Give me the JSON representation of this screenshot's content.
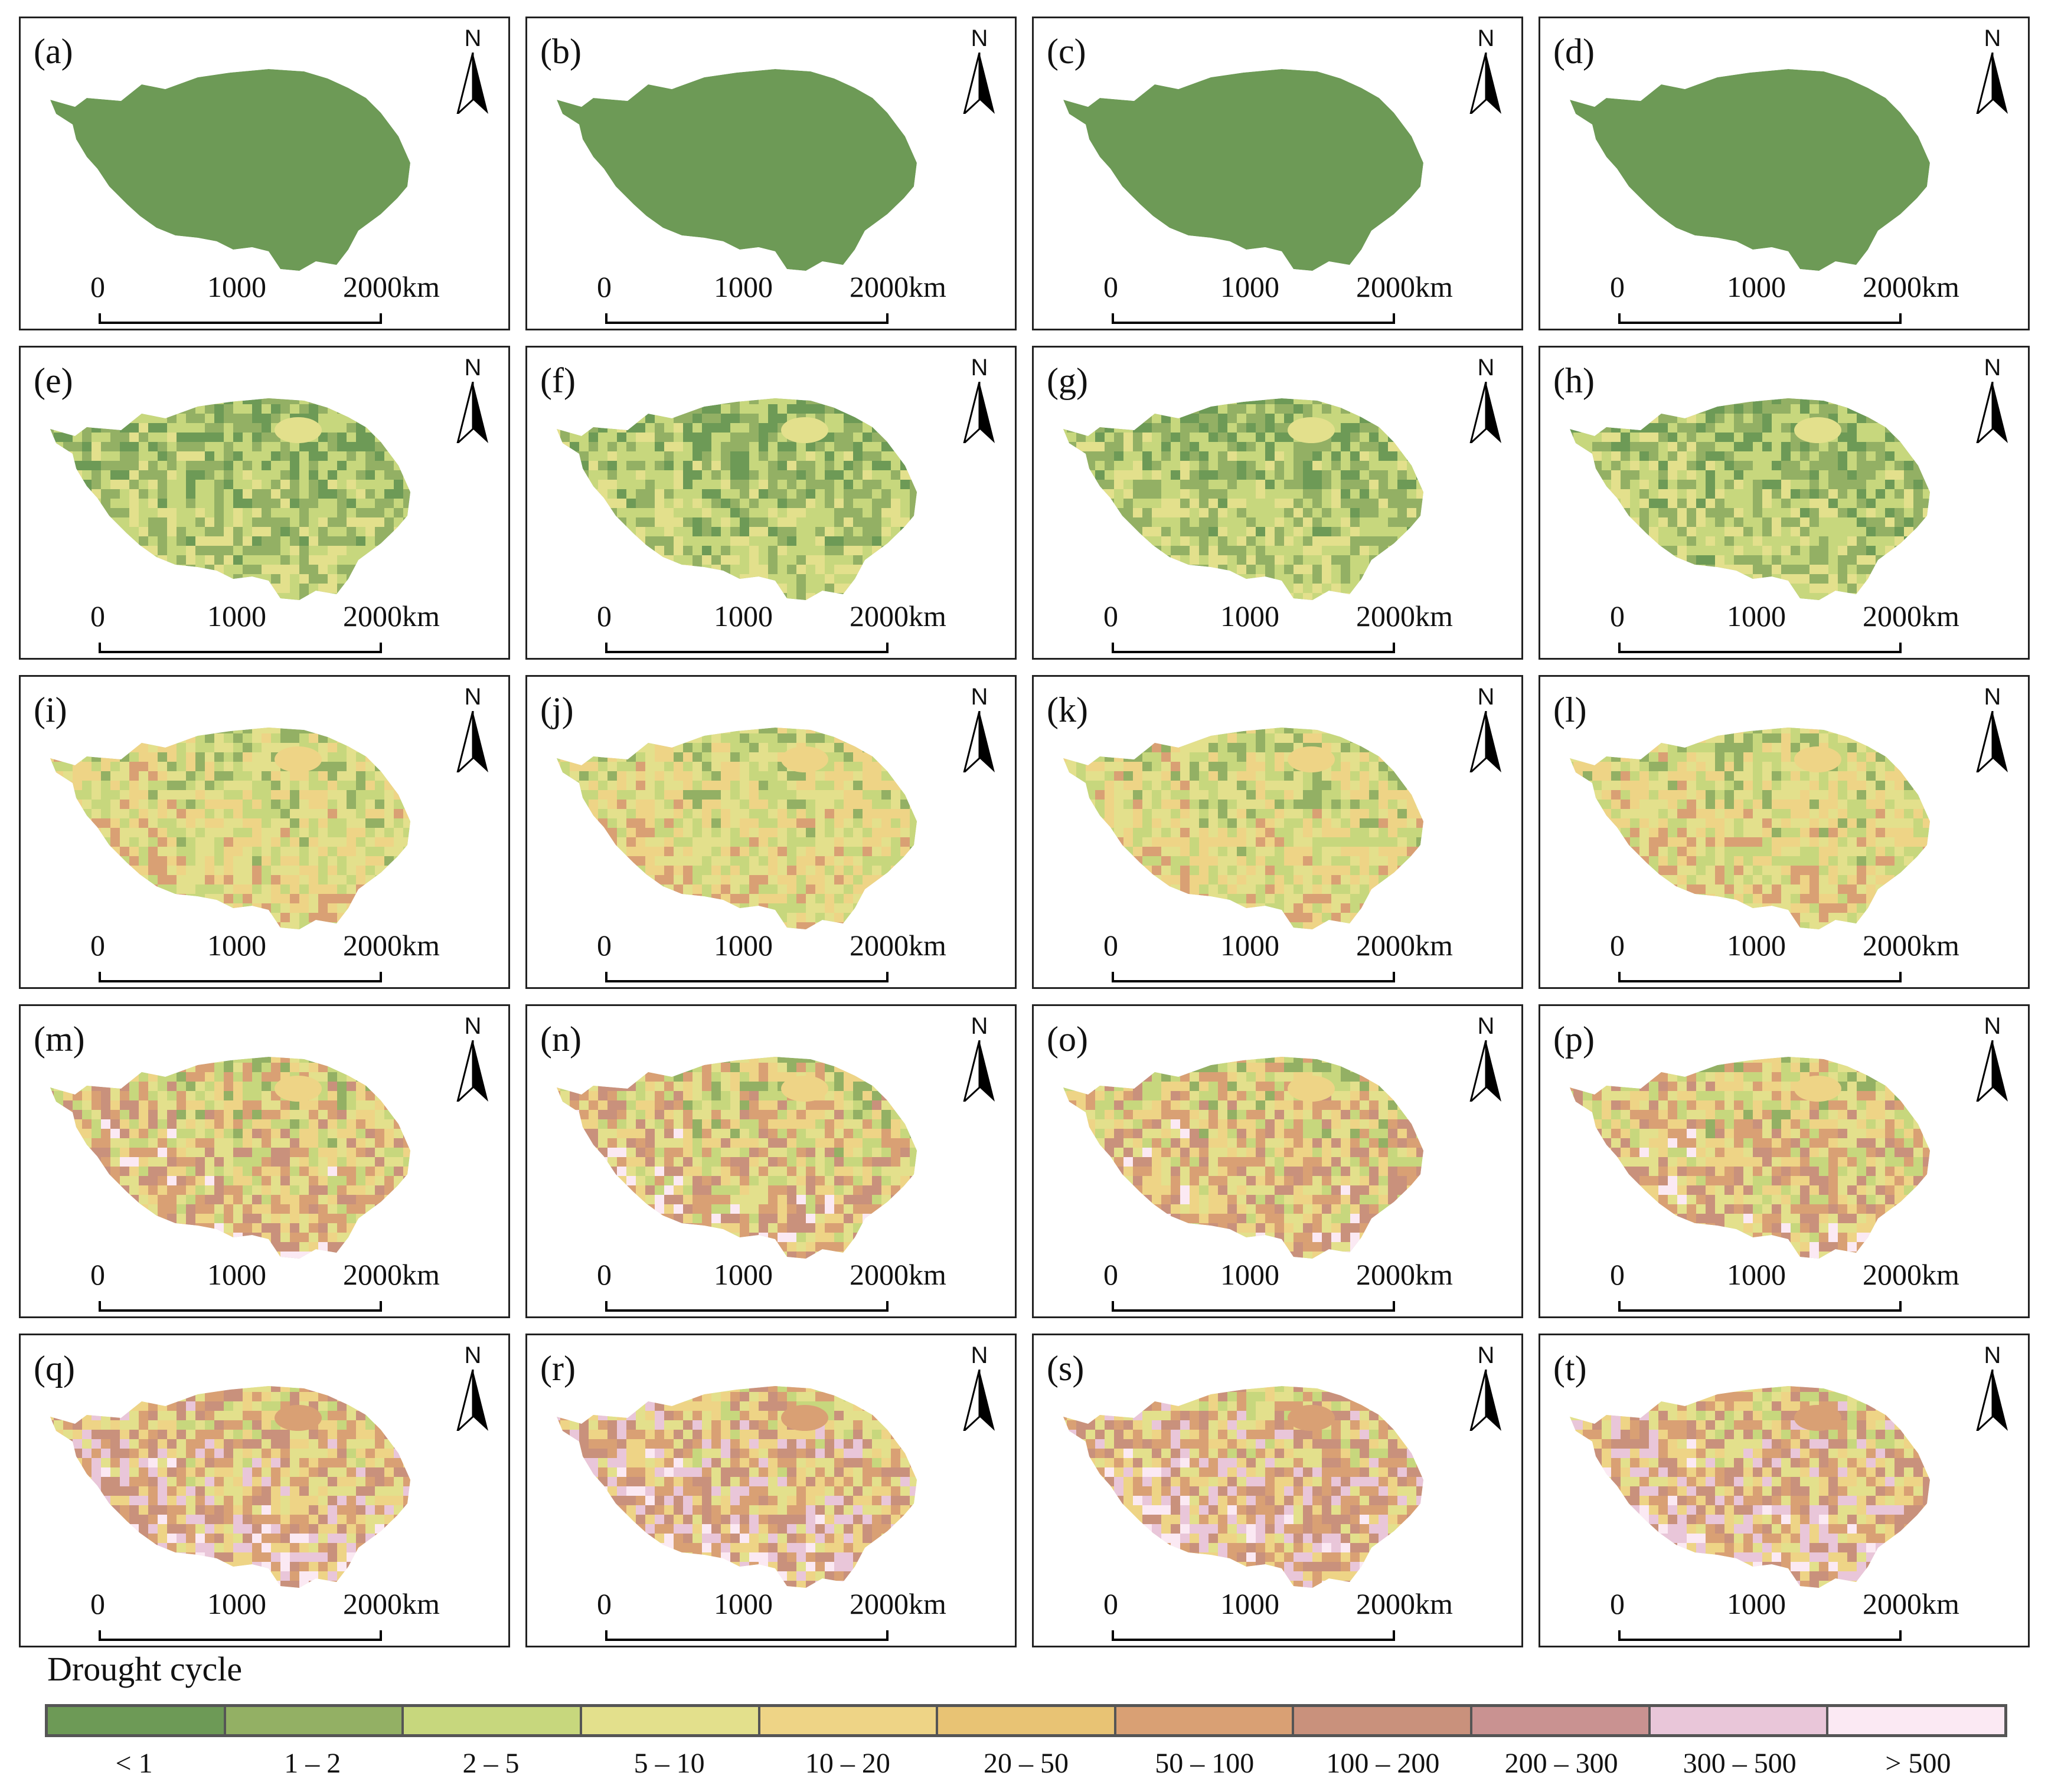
{
  "figure": {
    "panels": [
      {
        "label": "(a)",
        "palette": [
          "#6d9a56"
        ]
      },
      {
        "label": "(b)",
        "palette": [
          "#6d9a56"
        ]
      },
      {
        "label": "(c)",
        "palette": [
          "#6d9a56"
        ]
      },
      {
        "label": "(d)",
        "palette": [
          "#6d9a56"
        ]
      },
      {
        "label": "(e)",
        "palette": [
          "#6d9a56",
          "#93b064",
          "#c7d77d",
          "#e3e08c"
        ]
      },
      {
        "label": "(f)",
        "palette": [
          "#6d9a56",
          "#93b064",
          "#c7d77d",
          "#e3e08c"
        ]
      },
      {
        "label": "(g)",
        "palette": [
          "#6d9a56",
          "#93b064",
          "#c7d77d",
          "#e3e08c"
        ]
      },
      {
        "label": "(h)",
        "palette": [
          "#6d9a56",
          "#93b064",
          "#c7d77d",
          "#e3e08c"
        ]
      },
      {
        "label": "(i)",
        "palette": [
          "#93b064",
          "#c7d77d",
          "#e3e08c",
          "#eed486",
          "#d9a074"
        ]
      },
      {
        "label": "(j)",
        "palette": [
          "#93b064",
          "#c7d77d",
          "#e3e08c",
          "#eed486",
          "#d9a074"
        ]
      },
      {
        "label": "(k)",
        "palette": [
          "#93b064",
          "#c7d77d",
          "#e3e08c",
          "#eed486",
          "#d9a074"
        ]
      },
      {
        "label": "(l)",
        "palette": [
          "#93b064",
          "#c7d77d",
          "#e3e08c",
          "#eed486",
          "#d9a074"
        ]
      },
      {
        "label": "(m)",
        "palette": [
          "#93b064",
          "#c7d77d",
          "#e3e08c",
          "#eed486",
          "#d9a074",
          "#c9917c",
          "#fbe9f3"
        ]
      },
      {
        "label": "(n)",
        "palette": [
          "#93b064",
          "#c7d77d",
          "#e3e08c",
          "#eed486",
          "#d9a074",
          "#c9917c",
          "#fbe9f3"
        ]
      },
      {
        "label": "(o)",
        "palette": [
          "#93b064",
          "#c7d77d",
          "#e3e08c",
          "#eed486",
          "#d9a074",
          "#c9917c",
          "#fbe9f3"
        ]
      },
      {
        "label": "(p)",
        "palette": [
          "#93b064",
          "#c7d77d",
          "#e3e08c",
          "#eed486",
          "#d9a074",
          "#c9917c",
          "#fbe9f3"
        ]
      },
      {
        "label": "(q)",
        "palette": [
          "#c7d77d",
          "#e3e08c",
          "#eed486",
          "#d9a074",
          "#c9917c",
          "#e9c6d9",
          "#fbe9f3"
        ]
      },
      {
        "label": "(r)",
        "palette": [
          "#c7d77d",
          "#e3e08c",
          "#eed486",
          "#d9a074",
          "#c9917c",
          "#e9c6d9",
          "#fbe9f3"
        ]
      },
      {
        "label": "(s)",
        "palette": [
          "#c7d77d",
          "#e3e08c",
          "#eed486",
          "#d9a074",
          "#c9917c",
          "#e9c6d9",
          "#fbe9f3"
        ]
      },
      {
        "label": "(t)",
        "palette": [
          "#c7d77d",
          "#e3e08c",
          "#eed486",
          "#d9a074",
          "#c9917c",
          "#e9c6d9",
          "#fbe9f3"
        ]
      }
    ],
    "north_label": "N",
    "scale_labels": [
      "0",
      "1000",
      "2000km"
    ]
  },
  "legend": {
    "title": "Drought cycle",
    "classes": [
      {
        "label": "< 1",
        "color": "#6d9a56"
      },
      {
        "label": "1 – 2",
        "color": "#93b064"
      },
      {
        "label": "2 – 5",
        "color": "#c7d77d"
      },
      {
        "label": "5 – 10",
        "color": "#e3e08c"
      },
      {
        "label": "10 – 20",
        "color": "#eed486"
      },
      {
        "label": "20 – 50",
        "color": "#e8c374"
      },
      {
        "label": "50 – 100",
        "color": "#d9a074"
      },
      {
        "label": "100 – 200",
        "color": "#c9917c"
      },
      {
        "label": "200 – 300",
        "color": "#c99291"
      },
      {
        "label": "300 – 500",
        "color": "#e9c6d9"
      },
      {
        "label": "> 500",
        "color": "#fbe9f3"
      }
    ]
  }
}
